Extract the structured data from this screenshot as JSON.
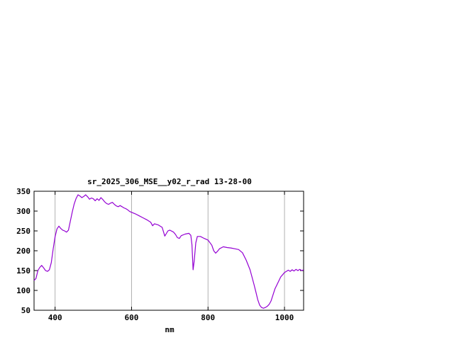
{
  "window": {
    "background": "#ffffff"
  },
  "chart_data": {
    "type": "line",
    "title": "sr_2025_306_MSE__y02_r_rad 13-28-00",
    "xlabel": "nm",
    "ylabel": "",
    "xlim": [
      345,
      1050
    ],
    "ylim": [
      50,
      350
    ],
    "xticks": [
      400,
      600,
      800,
      1000
    ],
    "yticks": [
      50,
      100,
      150,
      200,
      250,
      300,
      350
    ],
    "grid": "vertical-xtics-only",
    "legend_position": "none",
    "line_color": "#9400d3",
    "grid_color": "#b0b0b0",
    "border_color": "#000000",
    "series": [
      {
        "name": "sr_2025_306_MSE__y02_r_rad",
        "x": [
          345,
          350,
          355,
          360,
          365,
          370,
          375,
          380,
          385,
          390,
          395,
          400,
          405,
          410,
          415,
          420,
          425,
          430,
          435,
          440,
          445,
          450,
          455,
          460,
          465,
          470,
          475,
          480,
          485,
          490,
          495,
          500,
          505,
          510,
          515,
          520,
          525,
          530,
          535,
          540,
          545,
          550,
          555,
          560,
          565,
          570,
          575,
          580,
          585,
          590,
          595,
          600,
          610,
          620,
          630,
          640,
          650,
          655,
          660,
          670,
          680,
          687,
          690,
          695,
          700,
          710,
          715,
          720,
          725,
          730,
          740,
          750,
          755,
          758,
          761,
          764,
          768,
          772,
          780,
          790,
          800,
          810,
          815,
          820,
          825,
          830,
          840,
          850,
          860,
          870,
          880,
          890,
          900,
          910,
          920,
          925,
          930,
          935,
          940,
          945,
          950,
          955,
          960,
          965,
          970,
          975,
          980,
          985,
          990,
          1000,
          1005,
          1010,
          1015,
          1020,
          1025,
          1030,
          1035,
          1040,
          1045,
          1050
        ],
        "y": [
          125,
          130,
          150,
          158,
          163,
          157,
          150,
          148,
          152,
          170,
          205,
          235,
          255,
          262,
          256,
          252,
          250,
          247,
          252,
          275,
          298,
          318,
          332,
          341,
          338,
          334,
          337,
          341,
          336,
          330,
          333,
          331,
          326,
          331,
          327,
          334,
          329,
          323,
          319,
          317,
          320,
          322,
          317,
          313,
          311,
          314,
          311,
          308,
          306,
          303,
          299,
          297,
          293,
          288,
          283,
          278,
          272,
          263,
          268,
          265,
          259,
          237,
          242,
          250,
          252,
          247,
          241,
          233,
          231,
          238,
          242,
          244,
          239,
          215,
          152,
          175,
          220,
          236,
          236,
          231,
          227,
          214,
          200,
          194,
          199,
          205,
          210,
          208,
          207,
          205,
          203,
          195,
          176,
          152,
          116,
          97,
          77,
          63,
          57,
          55,
          57,
          60,
          65,
          74,
          89,
          104,
          114,
          124,
          134,
          145,
          148,
          151,
          148,
          152,
          149,
          153,
          150,
          153,
          150,
          152
        ]
      }
    ]
  }
}
